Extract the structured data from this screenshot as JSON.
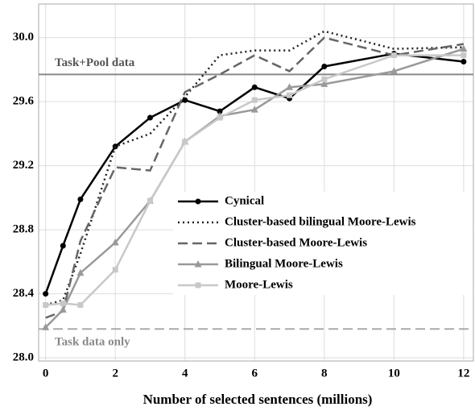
{
  "chart_data": {
    "type": "line",
    "x_label": "Number of selected sentences (millions)",
    "x": [
      0,
      0.5,
      1,
      2,
      3,
      4,
      5,
      6,
      7,
      8,
      10,
      12
    ],
    "series": [
      {
        "name": "Cynical",
        "color": "#000000",
        "dash": "solid",
        "marker": "circle",
        "values": [
          28.4,
          28.7,
          28.99,
          29.32,
          29.5,
          29.61,
          29.54,
          29.69,
          29.62,
          29.82,
          29.9,
          29.85
        ]
      },
      {
        "name": "Cluster-based bilingual Moore-Lewis",
        "color": "#222222",
        "dash": "dotted",
        "marker": "none",
        "values": [
          28.33,
          28.36,
          28.65,
          29.32,
          29.4,
          29.63,
          29.89,
          29.92,
          29.92,
          30.04,
          29.93,
          29.94
        ]
      },
      {
        "name": "Cluster-based Moore-Lewis",
        "color": "#666666",
        "dash": "dashed",
        "marker": "none",
        "values": [
          28.25,
          28.29,
          28.73,
          29.19,
          29.17,
          29.66,
          29.77,
          29.89,
          29.79,
          30.0,
          29.89,
          29.96
        ]
      },
      {
        "name": "Bilingual Moore-Lewis",
        "color": "#999999",
        "dash": "solid",
        "marker": "triangle",
        "values": [
          28.19,
          28.3,
          28.53,
          28.72,
          28.98,
          29.35,
          29.51,
          29.55,
          29.69,
          29.71,
          29.79,
          29.93
        ]
      },
      {
        "name": "Moore-Lewis",
        "color": "#c8c8c8",
        "dash": "solid",
        "marker": "square",
        "values": [
          28.33,
          28.34,
          28.33,
          28.55,
          28.98,
          29.35,
          29.5,
          29.61,
          29.64,
          29.74,
          29.89,
          29.89
        ]
      }
    ],
    "hlines": [
      {
        "value": 29.77,
        "label": "Task+Pool data",
        "color": "#888888",
        "dash": "solid"
      },
      {
        "value": 28.18,
        "label": "Task data only",
        "color": "#aaaaaa",
        "dash": "dashed"
      }
    ],
    "xlim": [
      -0.2,
      12.28
    ],
    "ylim": [
      27.98,
      30.21
    ],
    "xticks": [
      0,
      2,
      4,
      6,
      8,
      10,
      12
    ],
    "yticks": [
      {
        "value": 28,
        "label": "28.0"
      },
      28.4,
      28.8,
      29.2,
      29.6,
      {
        "value": 30,
        "label": "30.0"
      }
    ],
    "grid": true,
    "legend": "center-right"
  }
}
